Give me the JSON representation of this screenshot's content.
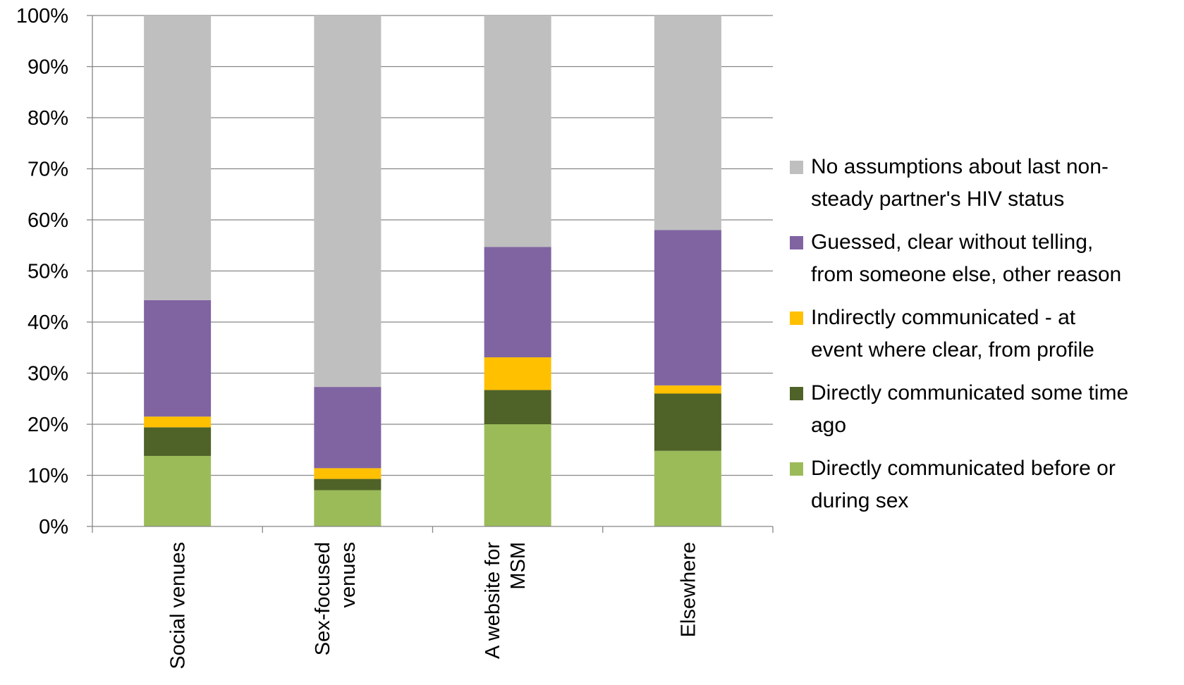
{
  "chart_data": {
    "type": "bar",
    "stacked": true,
    "percent": true,
    "categories": [
      "Social venues",
      "Sex-focused venues",
      "A website for MSM",
      "Elsewhere"
    ],
    "category_lines": [
      [
        "Social venues"
      ],
      [
        "Sex-focused",
        "venues"
      ],
      [
        "A website for",
        "MSM"
      ],
      [
        "Elsewhere"
      ]
    ],
    "series": [
      {
        "name": "Directly communicated before or during sex",
        "color": "#9BBB59",
        "values": [
          13.8,
          7.1,
          20.0,
          14.8
        ]
      },
      {
        "name": "Directly communicated some time ago",
        "color": "#4F6228",
        "values": [
          5.6,
          2.2,
          6.7,
          11.2
        ]
      },
      {
        "name": "Indirectly communicated - at event where clear, from profile",
        "color": "#FFC000",
        "values": [
          2.1,
          2.1,
          6.4,
          1.6
        ]
      },
      {
        "name": "Guessed, clear without telling, from someone else, other reason",
        "color": "#8064A2",
        "values": [
          22.8,
          15.9,
          21.6,
          30.4
        ]
      },
      {
        "name": "No assumptions about last non-steady partner's HIV status",
        "color": "#BFBFBF",
        "values": [
          55.7,
          72.7,
          45.3,
          42.0
        ]
      }
    ],
    "ylim": [
      0,
      100
    ],
    "yticks": [
      "0%",
      "10%",
      "20%",
      "30%",
      "40%",
      "50%",
      "60%",
      "70%",
      "80%",
      "90%",
      "100%"
    ],
    "grid": true,
    "legend_position": "right"
  },
  "legend": [
    {
      "lines": [
        "No assumptions about last non-",
        "steady partner's HIV status"
      ],
      "color": "#BFBFBF"
    },
    {
      "lines": [
        "Guessed, clear without telling,",
        "from someone else, other reason"
      ],
      "color": "#8064A2"
    },
    {
      "lines": [
        "Indirectly communicated - at",
        "event where clear, from profile"
      ],
      "color": "#FFC000"
    },
    {
      "lines": [
        "Directly communicated some time",
        "ago"
      ],
      "color": "#4F6228"
    },
    {
      "lines": [
        "Directly communicated before or",
        "during sex"
      ],
      "color": "#9BBB59"
    }
  ]
}
